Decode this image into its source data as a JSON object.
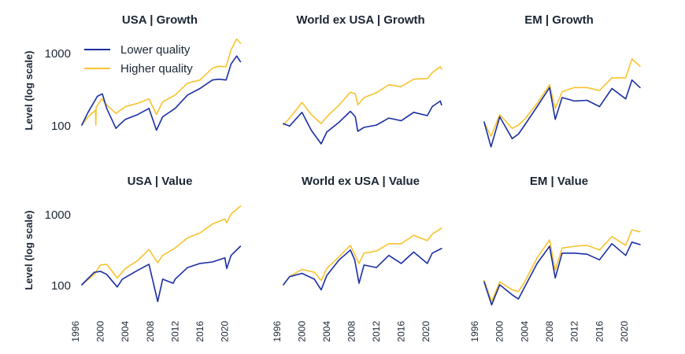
{
  "chart_data": {
    "type": "line",
    "layout": "2x3 small multiples",
    "yscale": "log",
    "ylabel": "Level (log scale)",
    "ylim": [
      50,
      1700
    ],
    "yticks": [
      100,
      1000
    ],
    "ytick_labels": [
      "100",
      "1000"
    ],
    "xlim": [
      1996,
      2023
    ],
    "xticks": [
      1996,
      2000,
      2004,
      2008,
      2012,
      2016,
      2020
    ],
    "xtick_labels": [
      "1996",
      "2000",
      "2004",
      "2008",
      "2012",
      "2016",
      "2020"
    ],
    "grid": false,
    "legend": {
      "placement": "top-left of first panel",
      "entries": [
        {
          "name": "Lower quality",
          "color": "#1a2ea3"
        },
        {
          "name": "Higher quality",
          "color": "#f9c22e"
        }
      ]
    },
    "panels": [
      {
        "title": "USA | Growth",
        "series": [
          {
            "name": "Lower quality",
            "x": [
              1997,
              1998,
              1999.5,
              2000.3,
              2001,
              2002.5,
              2003,
              2004,
              2006,
              2007.8,
              2009,
              2010,
              2012,
              2014,
              2016,
              2018,
              2019,
              2020.2,
              2021,
              2021.9,
              2022.5
            ],
            "y": [
              100,
              150,
              250,
              270,
              170,
              90,
              100,
              120,
              140,
              170,
              85,
              130,
              170,
              260,
              320,
              420,
              430,
              420,
              700,
              900,
              750
            ]
          },
          {
            "name": "Higher quality",
            "x": [
              1997,
              1998,
              1999.2,
              1999.25,
              1999.3,
              2000.2,
              2001,
              2002.5,
              2004,
              2006,
              2007.8,
              2009,
              2010,
              2012,
              2014,
              2016,
              2018,
              2019,
              2020.2,
              2021,
              2021.9,
              2022.5
            ],
            "y": [
              100,
              130,
              160,
              100,
              175,
              230,
              190,
              145,
              180,
              200,
              230,
              140,
              210,
              260,
              380,
              420,
              610,
              650,
              640,
              1100,
              1550,
              1350
            ]
          }
        ]
      },
      {
        "title": "World ex USA | Growth",
        "series": [
          {
            "name": "Lower quality",
            "x": [
              1997,
              1998,
              2000,
              2001.5,
              2003.1,
              2004,
              2006,
              2007.8,
              2008.6,
              2009,
              2010,
              2012,
              2014,
              2016,
              2018,
              2020.2,
              2021,
              2022.3,
              2022.5
            ],
            "y": [
              105,
              97,
              150,
              85,
              55,
              80,
              110,
              155,
              130,
              82,
              93,
              100,
              125,
              115,
              150,
              135,
              180,
              215,
              190
            ]
          },
          {
            "name": "Higher quality",
            "x": [
              1997,
              1998,
              2000,
              2001.5,
              2003.1,
              2004,
              2006,
              2007.8,
              2008.6,
              2009,
              2010,
              2012,
              2014,
              2016,
              2018,
              2020.2,
              2021,
              2022.3,
              2022.5
            ],
            "y": [
              100,
              125,
              205,
              140,
              105,
              130,
              190,
              285,
              270,
              190,
              240,
              280,
              360,
              340,
              430,
              440,
              530,
              640,
              590
            ]
          }
        ]
      },
      {
        "title": "EM | Growth",
        "series": [
          {
            "name": "Lower quality",
            "x": [
              1997.5,
              1998.6,
              2000,
              2002,
              2003,
              2004,
              2006,
              2008,
              2008.9,
              2010,
              2012,
              2014,
              2016,
              2018,
              2020.2,
              2021.2,
              2022.5
            ],
            "y": [
              110,
              50,
              130,
              65,
              75,
              100,
              180,
              330,
              120,
              240,
              215,
              220,
              180,
              320,
              230,
              420,
              330
            ]
          },
          {
            "name": "Higher quality",
            "x": [
              1997.5,
              1998.6,
              2000,
              2002,
              2003,
              2004,
              2006,
              2008,
              2008.9,
              2010,
              2012,
              2014,
              2016,
              2018,
              2020.2,
              2021.2,
              2022.5
            ],
            "y": [
              110,
              70,
              140,
              90,
              100,
              120,
              200,
              360,
              170,
              290,
              330,
              330,
              300,
              450,
              450,
              820,
              650
            ]
          }
        ]
      },
      {
        "title": "USA | Value",
        "series": [
          {
            "name": "Lower quality",
            "x": [
              1997,
              1999,
              2000,
              2001,
              2002.7,
              2003.5,
              2006,
              2007.8,
              2009.2,
              2010,
              2011.7,
              2012,
              2014,
              2016,
              2018,
              2020,
              2020.3,
              2021,
              2022.5
            ],
            "y": [
              100,
              150,
              155,
              140,
              93,
              120,
              160,
              195,
              58,
              120,
              105,
              120,
              175,
              200,
              210,
              240,
              170,
              260,
              350
            ]
          },
          {
            "name": "Higher quality",
            "x": [
              1997,
              1999,
              2000,
              2001,
              2002.7,
              2004,
              2006,
              2007.8,
              2009.2,
              2010,
              2012,
              2014,
              2016,
              2018,
              2020,
              2020.3,
              2021,
              2022.5
            ],
            "y": [
              100,
              140,
              190,
              195,
              125,
              170,
              220,
              315,
              205,
              260,
              330,
              460,
              540,
              720,
              850,
              750,
              1000,
              1290
            ]
          }
        ]
      },
      {
        "title": "World ex USA | Value",
        "series": [
          {
            "name": "Lower quality",
            "x": [
              1997,
              1998,
              2000,
              2002,
              2003.1,
              2004,
              2006,
              2007.8,
              2008.5,
              2009.2,
              2010,
              2012,
              2014,
              2016,
              2018,
              2020.2,
              2021,
              2022.5
            ],
            "y": [
              100,
              130,
              145,
              120,
              85,
              135,
              225,
              310,
              225,
              105,
              190,
              175,
              260,
              200,
              290,
              200,
              280,
              325
            ]
          },
          {
            "name": "Higher quality",
            "x": [
              1997,
              1998,
              2000,
              2002,
              2003.1,
              2004,
              2006,
              2007.8,
              2009.2,
              2010,
              2012,
              2014,
              2016,
              2018,
              2020.2,
              2021,
              2022.5
            ],
            "y": [
              100,
              130,
              165,
              150,
              115,
              170,
              250,
              360,
              200,
              280,
              300,
              380,
              380,
              500,
              420,
              520,
              630
            ]
          }
        ]
      },
      {
        "title": "EM | Value",
        "series": [
          {
            "name": "Lower quality",
            "x": [
              1997.5,
              1998.7,
              2000,
              2002,
              2003,
              2004,
              2006,
              2008,
              2008.9,
              2010,
              2012,
              2014,
              2016,
              2018,
              2020.2,
              2021.2,
              2022.5
            ],
            "y": [
              110,
              52,
              100,
              72,
              63,
              93,
              200,
              350,
              125,
              280,
              280,
              270,
              225,
              380,
              260,
              400,
              370
            ]
          },
          {
            "name": "Higher quality",
            "x": [
              1997.5,
              1998.7,
              2000,
              2002,
              2003,
              2004,
              2006,
              2008,
              2008.9,
              2010,
              2012,
              2014,
              2016,
              2018,
              2020.2,
              2021.2,
              2022.5
            ],
            "y": [
              115,
              58,
              110,
              85,
              80,
              110,
              240,
              430,
              160,
              330,
              350,
              360,
              310,
              480,
              360,
              600,
              560
            ]
          }
        ]
      }
    ]
  }
}
